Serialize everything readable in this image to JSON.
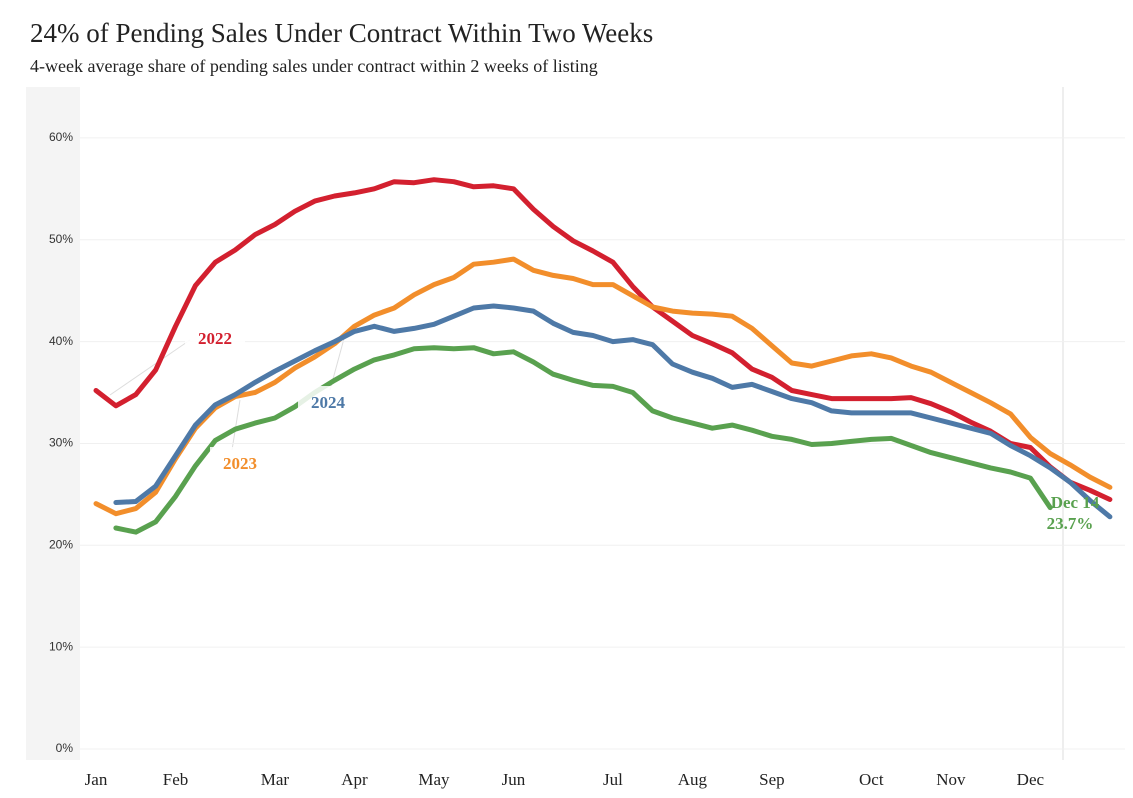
{
  "chart_data": {
    "type": "line",
    "title": "24% of Pending Sales Under Contract Within Two Weeks",
    "subtitle": "4-week average share of pending sales under contract within 2 weeks of listing",
    "categories": [
      "Jan",
      null,
      null,
      null,
      "Feb",
      null,
      null,
      null,
      null,
      "Mar",
      null,
      null,
      null,
      "Apr",
      null,
      null,
      null,
      "May",
      null,
      null,
      null,
      "Jun",
      null,
      null,
      null,
      null,
      "Jul",
      null,
      null,
      null,
      "Aug",
      null,
      null,
      null,
      "Sep",
      null,
      null,
      null,
      null,
      "Oct",
      null,
      null,
      null,
      "Nov",
      null,
      null,
      null,
      "Dec",
      null,
      null,
      null,
      null
    ],
    "ylim": [
      0,
      65
    ],
    "yticks": [
      {
        "value": 0,
        "label": "0%"
      },
      {
        "value": 10,
        "label": "10%"
      },
      {
        "value": 20,
        "label": "20%"
      },
      {
        "value": 30,
        "label": "30%"
      },
      {
        "value": 40,
        "label": "40%"
      },
      {
        "value": 50,
        "label": "50%"
      },
      {
        "value": 60,
        "label": "60%"
      }
    ],
    "grid": true,
    "series": [
      {
        "name": "2022",
        "color": "#d3202f",
        "values": [
          35.2,
          33.7,
          34.8,
          37.2,
          41.5,
          45.5,
          47.8,
          49,
          50.5,
          51.5,
          52.8,
          53.8,
          54.3,
          54.6,
          55,
          55.7,
          55.6,
          55.9,
          55.7,
          55.2,
          55.3,
          55,
          53,
          51.3,
          49.9,
          48.9,
          47.8,
          45.4,
          43.4,
          42,
          40.6,
          39.8,
          38.9,
          37.3,
          36.5,
          35.2,
          34.8,
          34.4,
          34.4,
          34.4,
          34.4,
          34.5,
          33.9,
          33.1,
          32.1,
          31.2,
          30,
          29.6,
          27.7,
          26.2,
          25.4,
          24.5
        ]
      },
      {
        "name": "2023",
        "color": "#f28e2b",
        "values": [
          24.1,
          23.1,
          23.6,
          25.2,
          28.5,
          31.5,
          33.5,
          34.6,
          35,
          36,
          37.4,
          38.5,
          39.8,
          41.5,
          42.6,
          43.3,
          44.6,
          45.6,
          46.3,
          47.6,
          47.8,
          48.1,
          47,
          46.5,
          46.2,
          45.6,
          45.6,
          44.5,
          43.4,
          43,
          42.8,
          42.7,
          42.5,
          41.3,
          39.6,
          37.9,
          37.6,
          38.1,
          38.6,
          38.8,
          38.4,
          37.6,
          37,
          36,
          35,
          34,
          32.9,
          30.6,
          29,
          27.9,
          26.7,
          25.7
        ]
      },
      {
        "name": "2024",
        "color": "#4e79a7",
        "values": [
          null,
          24.2,
          24.3,
          25.8,
          28.8,
          31.8,
          33.8,
          34.8,
          36,
          37.1,
          38.1,
          39.1,
          40,
          41,
          41.5,
          41,
          41.3,
          41.7,
          42.5,
          43.3,
          43.5,
          43.3,
          43,
          41.8,
          40.9,
          40.6,
          40,
          40.2,
          39.7,
          37.8,
          37,
          36.4,
          35.5,
          35.8,
          35.1,
          34.4,
          34,
          33.2,
          33,
          33,
          33,
          33,
          32.5,
          32,
          31.5,
          31,
          29.8,
          28.8,
          27.6,
          26.2,
          24.4,
          22.8
        ]
      },
      {
        "color": "#59a14f",
        "values": [
          null,
          21.7,
          21.3,
          22.3,
          24.8,
          27.8,
          30.3,
          31.4,
          32,
          32.5,
          33.6,
          35,
          36.2,
          37.3,
          38.2,
          38.7,
          39.3,
          39.4,
          39.3,
          39.4,
          38.8,
          39,
          38,
          36.8,
          36.2,
          35.7,
          35.6,
          35,
          33.2,
          32.5,
          32,
          31.5,
          31.8,
          31.3,
          30.7,
          30.4,
          29.9,
          30,
          30.2,
          30.4,
          30.5,
          29.8,
          29.1,
          28.6,
          28.1,
          27.6,
          27.2,
          26.6,
          23.7,
          null,
          null,
          null
        ]
      }
    ],
    "annotations": [
      "Dec 14",
      "23.7%"
    ]
  }
}
